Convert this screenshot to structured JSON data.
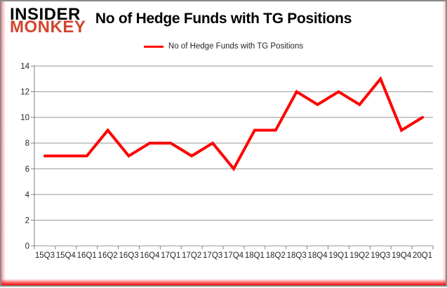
{
  "logo": {
    "line1": "INSIDER",
    "line2": "MONKEY",
    "monkey_color": "#d2452e"
  },
  "header": {
    "title": "No of Hedge Funds with TG Positions"
  },
  "legend": {
    "label": "No of Hedge Funds with TG Positions",
    "line_color": "#ff0000"
  },
  "chart_data": {
    "type": "line",
    "title": "No of Hedge Funds with TG Positions",
    "legend_entries": [
      "No of Hedge Funds with TG Positions"
    ],
    "legend_position": "top-center",
    "categories": [
      "15Q3",
      "15Q4",
      "16Q1",
      "16Q2",
      "16Q3",
      "16Q4",
      "17Q1",
      "17Q2",
      "17Q3",
      "17Q4",
      "18Q1",
      "18Q2",
      "18Q3",
      "18Q4",
      "19Q1",
      "19Q2",
      "19Q3",
      "19Q4",
      "20Q1"
    ],
    "series": [
      {
        "name": "No of Hedge Funds with TG Positions",
        "values": [
          7,
          7,
          7,
          9,
          7,
          8,
          8,
          7,
          8,
          6,
          9,
          9,
          12,
          11,
          12,
          11,
          13,
          9,
          10
        ]
      }
    ],
    "xlabel": "",
    "ylabel": "",
    "ylim": [
      0,
      14
    ],
    "ytick_step": 2,
    "grid": "horizontal",
    "line_color": "#ff0000",
    "gridline_color": "#969696",
    "axis_color": "#808080",
    "tick_label_color": "#262626"
  }
}
